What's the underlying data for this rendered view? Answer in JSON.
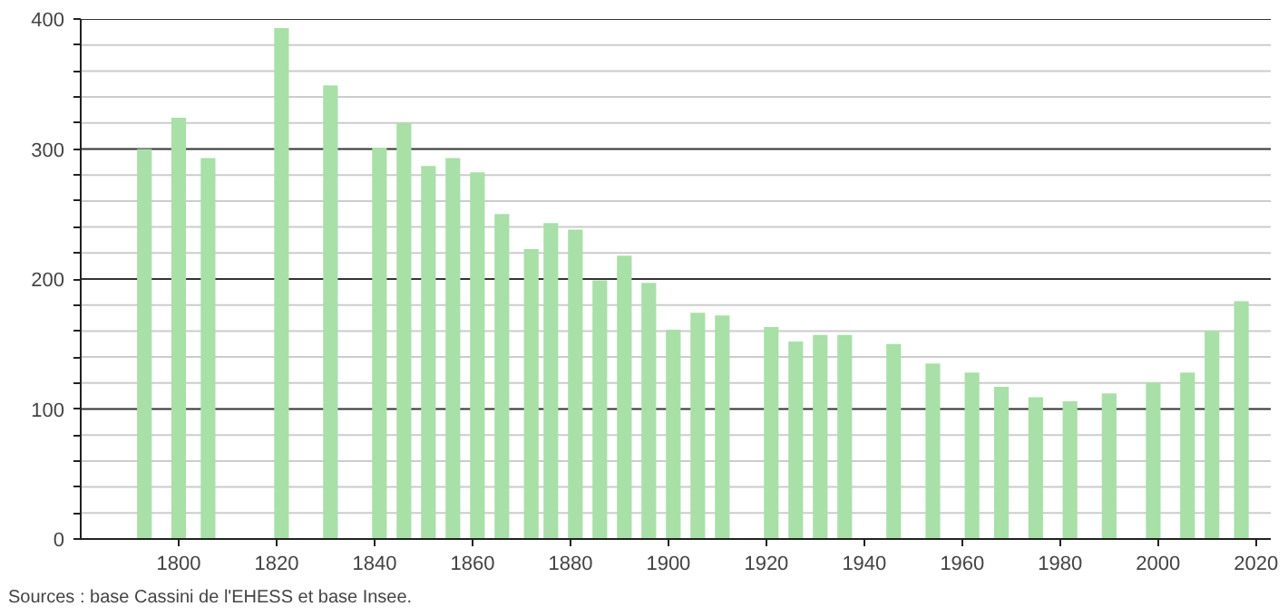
{
  "chart_data": {
    "type": "bar",
    "x": [
      1793,
      1800,
      1806,
      1821,
      1831,
      1841,
      1846,
      1851,
      1856,
      1861,
      1866,
      1872,
      1876,
      1881,
      1886,
      1891,
      1896,
      1901,
      1906,
      1911,
      1921,
      1926,
      1931,
      1936,
      1946,
      1954,
      1962,
      1968,
      1975,
      1982,
      1990,
      1999,
      2006,
      2011,
      2017
    ],
    "values": [
      300,
      324,
      293,
      393,
      349,
      301,
      320,
      287,
      293,
      282,
      250,
      223,
      243,
      238,
      199,
      218,
      197,
      161,
      174,
      172,
      163,
      152,
      157,
      157,
      150,
      135,
      128,
      117,
      109,
      106,
      112,
      120,
      128,
      160,
      183
    ],
    "color": "#a8e0a8",
    "xlim": [
      1780,
      2023
    ],
    "xticks": [
      1800,
      1820,
      1840,
      1860,
      1880,
      1900,
      1920,
      1940,
      1960,
      1980,
      2000,
      2020
    ],
    "ylim": [
      0,
      400
    ],
    "yticks": [
      0,
      {
        "value": 20,
        "label": null
      },
      {
        "value": 40,
        "label": null
      },
      {
        "value": 60,
        "label": null
      },
      {
        "value": 80,
        "label": null
      },
      100,
      {
        "value": 120,
        "label": null
      },
      {
        "value": 140,
        "label": null
      },
      {
        "value": 160,
        "label": null
      },
      {
        "value": 180,
        "label": null
      },
      200,
      {
        "value": 220,
        "label": null
      },
      {
        "value": 240,
        "label": null
      },
      {
        "value": 260,
        "label": null
      },
      {
        "value": 280,
        "label": null
      },
      300,
      {
        "value": 320,
        "label": null
      },
      {
        "value": 340,
        "label": null
      },
      {
        "value": 360,
        "label": null
      },
      {
        "value": 380,
        "label": null
      },
      400
    ],
    "grid": "y",
    "annotations": [
      "Sources : base Cassini de l'EHESS et base Insee."
    ]
  }
}
